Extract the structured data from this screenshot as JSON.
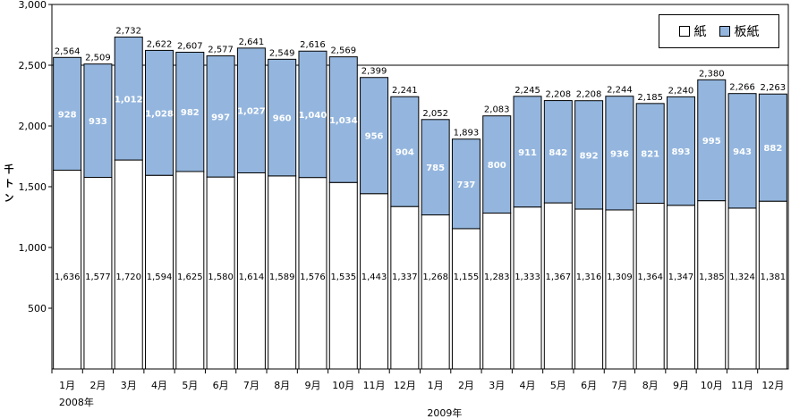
{
  "chart_data": {
    "type": "bar",
    "stacked": true,
    "ylabel": "千トン",
    "ylim": [
      0,
      3000
    ],
    "yticks": [
      "500",
      "1,000",
      "1,500",
      "2,000",
      "2,500",
      "3,000"
    ],
    "categories": [
      "1月",
      "2月",
      "3月",
      "4月",
      "5月",
      "6月",
      "7月",
      "8月",
      "9月",
      "10月",
      "11月",
      "12月",
      "1月",
      "2月",
      "3月",
      "4月",
      "5月",
      "6月",
      "7月",
      "8月",
      "9月",
      "10月",
      "11月",
      "12月"
    ],
    "year_labels": [
      "2008年",
      "2009年"
    ],
    "series": [
      {
        "name": "紙",
        "color": "#ffffff",
        "values": [
          1636,
          1577,
          1720,
          1594,
          1625,
          1580,
          1614,
          1589,
          1576,
          1535,
          1443,
          1337,
          1268,
          1155,
          1283,
          1333,
          1367,
          1316,
          1309,
          1364,
          1347,
          1385,
          1324,
          1381
        ],
        "labels": [
          "1,636",
          "1,577",
          "1,720",
          "1,594",
          "1,625",
          "1,580",
          "1,614",
          "1,589",
          "1,576",
          "1,535",
          "1,443",
          "1,337",
          "1,268",
          "1,155",
          "1,283",
          "1,333",
          "1,367",
          "1,316",
          "1,309",
          "1,364",
          "1,347",
          "1,385",
          "1,324",
          "1,381"
        ]
      },
      {
        "name": "板紙",
        "color": "#94b6de",
        "values": [
          928,
          933,
          1012,
          1028,
          982,
          997,
          1027,
          960,
          1040,
          1034,
          956,
          904,
          785,
          737,
          800,
          911,
          842,
          892,
          936,
          821,
          893,
          995,
          943,
          882
        ],
        "labels": [
          "928",
          "933",
          "1,012",
          "1,028",
          "982",
          "997",
          "1,027",
          "960",
          "1,040",
          "1,034",
          "956",
          "904",
          "785",
          "737",
          "800",
          "911",
          "842",
          "892",
          "936",
          "821",
          "893",
          "995",
          "943",
          "882"
        ]
      }
    ],
    "totals": [
      2564,
      2509,
      2732,
      2622,
      2607,
      2577,
      2641,
      2549,
      2616,
      2569,
      2399,
      2241,
      2052,
      1893,
      2083,
      2245,
      2208,
      2208,
      2244,
      2185,
      2240,
      2380,
      2266,
      2263
    ],
    "total_labels": [
      "2,564",
      "2,509",
      "2,732",
      "2,622",
      "2,607",
      "2,577",
      "2,641",
      "2,549",
      "2,616",
      "2,569",
      "2,399",
      "2,241",
      "2,052",
      "1,893",
      "2,083",
      "2,245",
      "2,208",
      "2,208",
      "2,244",
      "2,185",
      "2,240",
      "2,380",
      "2,266",
      "2,263"
    ],
    "legend_position": "top-right"
  }
}
